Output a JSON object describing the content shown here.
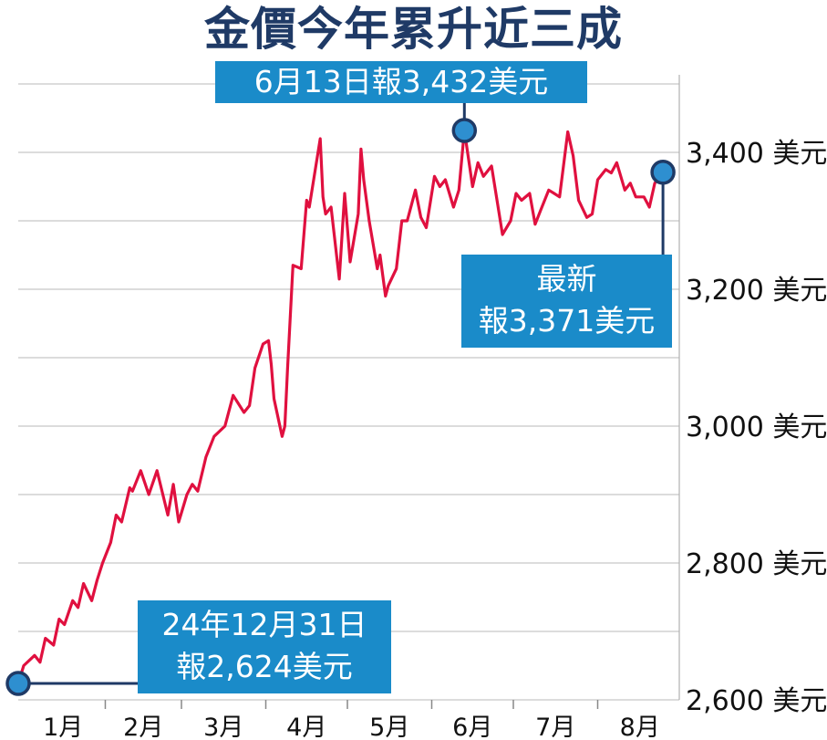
{
  "chart_data": {
    "type": "line",
    "title": "金價今年累升近三成",
    "ylim": [
      2600,
      3500
    ],
    "y_ticks": [
      {
        "value": 2600,
        "label": "2,600 美元"
      },
      {
        "value": 2800,
        "label": "2,800 美元"
      },
      {
        "value": 3000,
        "label": "3,000 美元"
      },
      {
        "value": 3200,
        "label": "3,200 美元"
      },
      {
        "value": 3400,
        "label": "3,400 美元"
      }
    ],
    "x_ticks": [
      "1月",
      "2月",
      "3月",
      "4月",
      "5月",
      "6月",
      "7月",
      "8月"
    ],
    "grid": true,
    "series": [
      {
        "color": "#e0103f",
        "x": [
          "2024-12-31",
          "2025-01-02",
          "2025-01-06",
          "2025-01-08",
          "2025-01-10",
          "2025-01-13",
          "2025-01-15",
          "2025-01-17",
          "2025-01-20",
          "2025-01-22",
          "2025-01-24",
          "2025-01-27",
          "2025-01-29",
          "2025-01-31",
          "2025-02-03",
          "2025-02-05",
          "2025-02-07",
          "2025-02-10",
          "2025-02-11",
          "2025-02-14",
          "2025-02-17",
          "2025-02-20",
          "2025-02-24",
          "2025-02-26",
          "2025-02-28",
          "2025-03-03",
          "2025-03-05",
          "2025-03-07",
          "2025-03-10",
          "2025-03-13",
          "2025-03-17",
          "2025-03-20",
          "2025-03-24",
          "2025-03-26",
          "2025-03-28",
          "2025-03-31",
          "2025-04-02",
          "2025-04-03",
          "2025-04-04",
          "2025-04-07",
          "2025-04-08",
          "2025-04-09",
          "2025-04-11",
          "2025-04-14",
          "2025-04-16",
          "2025-04-17",
          "2025-04-21",
          "2025-04-22",
          "2025-04-23",
          "2025-04-25",
          "2025-04-28",
          "2025-04-30",
          "2025-05-02",
          "2025-05-05",
          "2025-05-06",
          "2025-05-07",
          "2025-05-09",
          "2025-05-12",
          "2025-05-13",
          "2025-05-15",
          "2025-05-16",
          "2025-05-19",
          "2025-05-21",
          "2025-05-23",
          "2025-05-26",
          "2025-05-28",
          "2025-05-30",
          "2025-06-02",
          "2025-06-04",
          "2025-06-06",
          "2025-06-09",
          "2025-06-11",
          "2025-06-13",
          "2025-06-16",
          "2025-06-18",
          "2025-06-20",
          "2025-06-23",
          "2025-06-25",
          "2025-06-27",
          "2025-06-30",
          "2025-07-02",
          "2025-07-04",
          "2025-07-07",
          "2025-07-09",
          "2025-07-11",
          "2025-07-14",
          "2025-07-16",
          "2025-07-18",
          "2025-07-21",
          "2025-07-23",
          "2025-07-25",
          "2025-07-28",
          "2025-07-30",
          "2025-08-01",
          "2025-08-04",
          "2025-08-06",
          "2025-08-08",
          "2025-08-11",
          "2025-08-13",
          "2025-08-15",
          "2025-08-18",
          "2025-08-20",
          "2025-08-22",
          "2025-08-25"
        ],
        "values": [
          2624,
          2650,
          2665,
          2655,
          2690,
          2680,
          2718,
          2710,
          2745,
          2735,
          2770,
          2745,
          2775,
          2800,
          2830,
          2870,
          2860,
          2910,
          2905,
          2935,
          2900,
          2935,
          2870,
          2915,
          2860,
          2900,
          2915,
          2905,
          2955,
          2985,
          3000,
          3045,
          3020,
          3030,
          3085,
          3120,
          3125,
          3090,
          3040,
          2985,
          3000,
          3085,
          3235,
          3230,
          3330,
          3320,
          3420,
          3335,
          3310,
          3320,
          3215,
          3340,
          3240,
          3310,
          3405,
          3360,
          3300,
          3230,
          3250,
          3190,
          3205,
          3230,
          3300,
          3300,
          3345,
          3305,
          3290,
          3365,
          3350,
          3360,
          3320,
          3345,
          3432,
          3350,
          3385,
          3365,
          3380,
          3330,
          3280,
          3300,
          3340,
          3330,
          3340,
          3295,
          3315,
          3345,
          3340,
          3335,
          3430,
          3395,
          3330,
          3305,
          3310,
          3360,
          3375,
          3370,
          3385,
          3345,
          3355,
          3335,
          3335,
          3320,
          3355,
          3371
        ]
      }
    ],
    "annotations": [
      {
        "text": "6月13日報3,432美元",
        "x": "2025-06-13",
        "value": 3432
      },
      {
        "line1": "最新",
        "line2": "報3,371美元",
        "x": "2025-08-25",
        "value": 3371
      },
      {
        "line1": "24年12月31日",
        "line2": "報2,624美元",
        "x": "2024-12-31",
        "value": 2624
      }
    ]
  }
}
